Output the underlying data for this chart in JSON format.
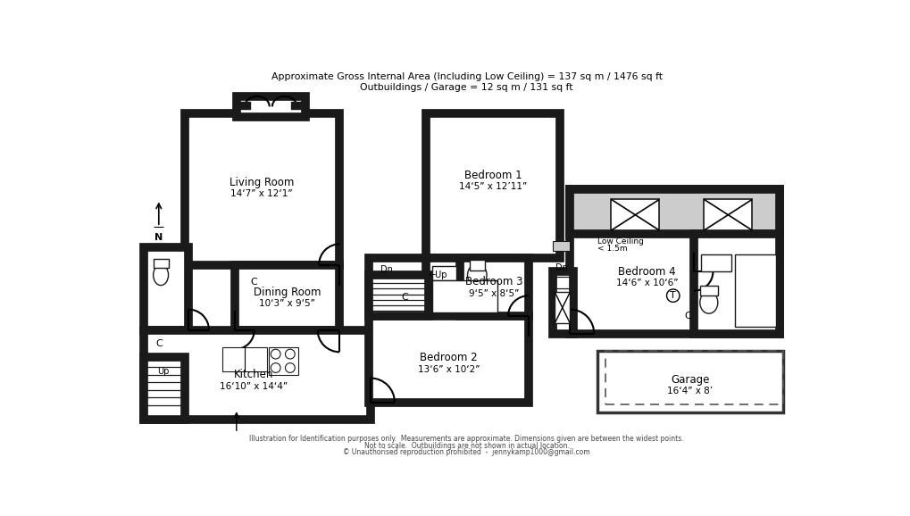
{
  "title_line1": "Approximate Gross Internal Area (Including Low Ceiling) = 137 sq m / 1476 sq ft",
  "title_line2": "Outbuildings / Garage = 12 sq m / 131 sq ft",
  "footer_line1": "Illustration for Identification purposes only.  Measurements are approximate. Dimensions given are between the widest points.",
  "footer_line2": "Not to scale.  Outbuildings are not shown in actual location.",
  "footer_line3": "© Unauthorised reproduction prohibited  -  jennykamp1000@gmail.com",
  "bg_color": "#ffffff",
  "wall_color": "#1a1a1a",
  "lowceiling_fill": "#cccccc",
  "garage_fill": "#ffffff"
}
